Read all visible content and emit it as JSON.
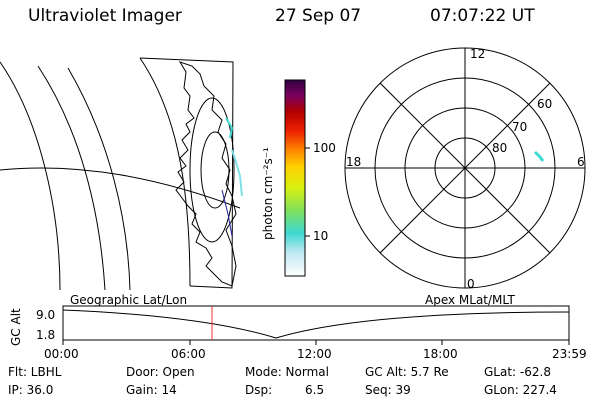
{
  "header": {
    "instrument": "Ultraviolet Imager",
    "date": "27 Sep 07",
    "time": "07:07:22 UT"
  },
  "colorbar": {
    "unit_label": "photon cm⁻²s⁻¹",
    "ticks": [
      "100",
      "10"
    ],
    "scale": "log",
    "colors": [
      "#ffffff",
      "#bfe8f2",
      "#3ed8d0",
      "#7ee060",
      "#d8f010",
      "#ffd000",
      "#ff8800",
      "#ee2000",
      "#b00000",
      "#7a0060",
      "#300040"
    ]
  },
  "polar_plot": {
    "mlt_labels": [
      "12",
      "18",
      "6",
      "0"
    ],
    "mlat_labels": [
      "60",
      "70",
      "80"
    ]
  },
  "timeline": {
    "left_label": "Geographic Lat/Lon",
    "right_label": "Apex MLat/MLT",
    "axis_label": "GC Alt",
    "y_ticks": [
      "9.0",
      "1.8"
    ],
    "x_ticks": [
      "00:00",
      "06:00",
      "12:00",
      "18:00",
      "23:59"
    ],
    "current_time_marker_hours": 7.12,
    "marker_color": "#ee3333"
  },
  "status": {
    "flt": "Flt: LBHL",
    "ip": "IP: 36.0",
    "door": "Door: Open",
    "gain": "Gain: 14",
    "mode": "Mode: Normal",
    "dsp_label": "Dsp:",
    "dsp_value": "6.5",
    "gc_alt": "GC Alt: 5.7 Re",
    "seq": "Seq: 39",
    "glat": "GLat: -62.8",
    "glon": "GLon: 227.4"
  }
}
